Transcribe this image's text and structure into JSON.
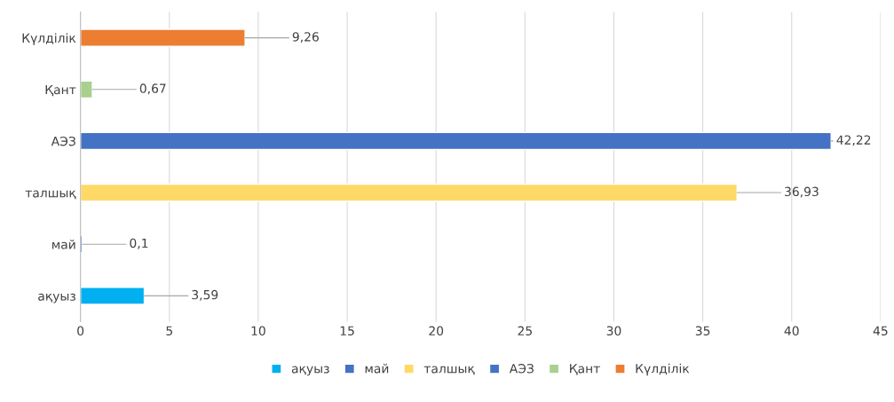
{
  "chart_data": {
    "type": "bar",
    "orientation": "horizontal",
    "categories": [
      "Күлділік",
      "Қант",
      "АЭЗ",
      "талшық",
      "май",
      "ақуыз"
    ],
    "series": [
      {
        "name": "ақуыз",
        "color": "#00b0f0",
        "values": [
          null,
          null,
          null,
          null,
          null,
          3.59
        ],
        "value_labels": [
          null,
          null,
          null,
          null,
          null,
          "3,59"
        ]
      },
      {
        "name": "май",
        "color": "#4472c4",
        "values": [
          null,
          null,
          null,
          null,
          0.1,
          null
        ],
        "value_labels": [
          null,
          null,
          null,
          null,
          "0,1",
          null
        ]
      },
      {
        "name": "талшық",
        "color": "#ffd966",
        "values": [
          null,
          null,
          null,
          36.93,
          null,
          null
        ],
        "value_labels": [
          null,
          null,
          null,
          "36,93",
          null,
          null
        ]
      },
      {
        "name": "АЭЗ",
        "color": "#4472c4",
        "values": [
          null,
          null,
          42.22,
          null,
          null,
          null
        ],
        "value_labels": [
          null,
          null,
          "42,22",
          null,
          null,
          null
        ]
      },
      {
        "name": "Қант",
        "color": "#a9d18e",
        "values": [
          null,
          0.67,
          null,
          null,
          null,
          null
        ],
        "value_labels": [
          null,
          "0,67",
          null,
          null,
          null,
          null
        ]
      },
      {
        "name": "Күлділік",
        "color": "#ed7d31",
        "values": [
          9.26,
          null,
          null,
          null,
          null,
          null
        ],
        "value_labels": [
          "9,26",
          null,
          null,
          null,
          null,
          null
        ]
      }
    ],
    "xlim": [
      0,
      45
    ],
    "xticks": [
      0,
      5,
      10,
      15,
      20,
      25,
      30,
      35,
      40,
      45
    ],
    "grid": "x",
    "legend": "bottom"
  }
}
